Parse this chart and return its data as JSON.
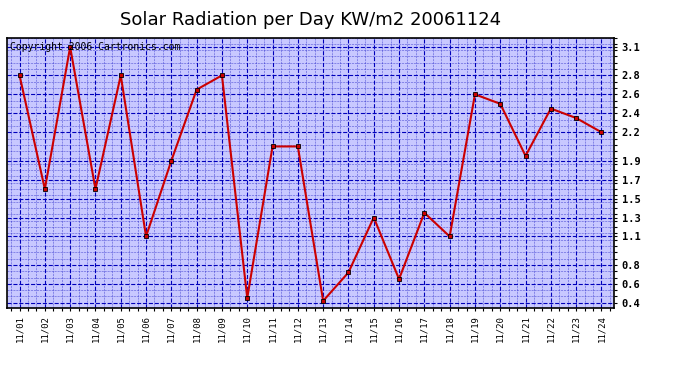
{
  "title": "Solar Radiation per Day KW/m2 20061124",
  "copyright": "Copyright 2006 Cartronics.com",
  "dates": [
    "11/01",
    "11/02",
    "11/03",
    "11/04",
    "11/05",
    "11/06",
    "11/07",
    "11/08",
    "11/09",
    "11/10",
    "11/11",
    "11/12",
    "11/13",
    "11/14",
    "11/15",
    "11/16",
    "11/17",
    "11/18",
    "11/19",
    "11/20",
    "11/21",
    "11/22",
    "11/23",
    "11/24"
  ],
  "values": [
    2.8,
    1.6,
    3.1,
    1.6,
    2.8,
    1.1,
    1.9,
    2.65,
    2.8,
    0.45,
    2.05,
    2.05,
    0.42,
    0.72,
    1.3,
    0.65,
    1.35,
    1.1,
    2.6,
    2.5,
    1.95,
    2.45,
    2.35,
    2.2
  ],
  "line_color": "#cc0000",
  "marker_color": "#cc0000",
  "marker_edge_color": "#000000",
  "bg_color": "#ffffff",
  "plot_bg_color": "#c8c8ff",
  "grid_color": "#0000bb",
  "ylim": [
    0.35,
    3.2
  ],
  "yticks": [
    0.4,
    0.6,
    0.8,
    1.1,
    1.3,
    1.5,
    1.7,
    1.9,
    2.2,
    2.4,
    2.6,
    2.8,
    3.1
  ],
  "title_fontsize": 13,
  "copyright_fontsize": 7,
  "tick_fontsize": 7.5,
  "xtick_fontsize": 6.5
}
